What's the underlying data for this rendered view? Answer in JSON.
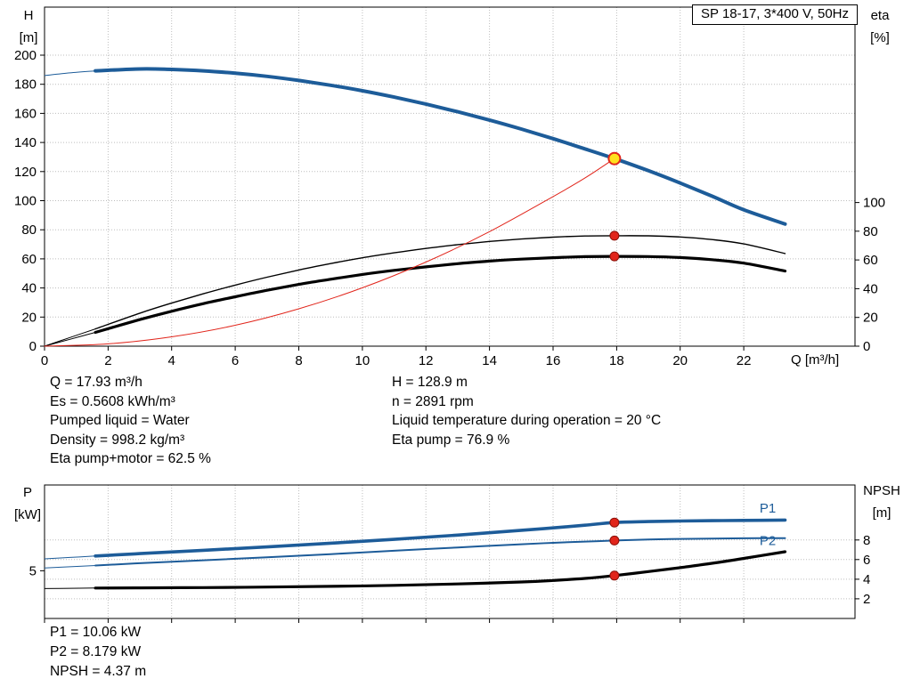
{
  "title_box": "SP 18-17, 3*400 V, 50Hz",
  "axis_labels": {
    "h": "H",
    "h_unit": "[m]",
    "eta": "eta",
    "eta_unit": "[%]",
    "q": "Q [m³/h]",
    "p": "P",
    "p_unit": "[kW]",
    "npsh": "NPSH",
    "npsh_unit": "[m]"
  },
  "readouts_top": {
    "left": [
      "Q = 17.93 m³/h",
      "Es = 0.5608 kWh/m³",
      "Pumped liquid = Water",
      "Density = 998.2 kg/m³",
      "Eta pump+motor = 62.5 %"
    ],
    "right": [
      "H = 128.9 m",
      "n = 2891 rpm",
      "Liquid temperature during operation = 20 °C",
      "Eta pump = 76.9 %"
    ]
  },
  "readouts_bottom": [
    "P1 = 10.06 kW",
    "P2 = 8.179 kW",
    "NPSH = 4.37 m"
  ],
  "colors": {
    "curve_blue": "#1d5c99",
    "red": "#e1251b",
    "marker_yellow": "#ffe11e",
    "grid": "#bdbdbd",
    "axis": "#000000"
  },
  "chart_data": [
    {
      "id": "top",
      "type": "line",
      "title": "SP 18-17, 3*400 V, 50Hz",
      "xlabel": "Q [m³/h]",
      "ylabel_left": "H [m]",
      "ylabel_right": "eta [%]",
      "x_range": [
        0,
        25.5
      ],
      "x_ticks": [
        0,
        2,
        4,
        6,
        8,
        10,
        12,
        14,
        16,
        18,
        20,
        22
      ],
      "y_left_range": [
        0,
        233
      ],
      "y_left_ticks": [
        0,
        20,
        40,
        60,
        80,
        100,
        120,
        140,
        160,
        180,
        200
      ],
      "y_right_range": [
        0,
        236
      ],
      "y_right_ticks": [
        0,
        20,
        40,
        60,
        80,
        100
      ],
      "grid_horizontal": "left",
      "series": [
        {
          "name": "pump-curve-h",
          "label": "H",
          "scale": "left",
          "color": "#1d5c99",
          "width": 4,
          "lead": [
            [
              0,
              186
            ],
            [
              0.8,
              187.8
            ],
            [
              1.6,
              189.2
            ]
          ],
          "points": [
            [
              1.6,
              189.2
            ],
            [
              3,
              190.5
            ],
            [
              4,
              190.2
            ],
            [
              5,
              189.2
            ],
            [
              6,
              187.6
            ],
            [
              7,
              185.4
            ],
            [
              8,
              182.6
            ],
            [
              9,
              179.3
            ],
            [
              10,
              175.5
            ],
            [
              11,
              171.2
            ],
            [
              12,
              166.4
            ],
            [
              13,
              161.1
            ],
            [
              14,
              155.4
            ],
            [
              15,
              149.2
            ],
            [
              16,
              142.6
            ],
            [
              17,
              135.6
            ],
            [
              17.93,
              128.9
            ],
            [
              19,
              120.6
            ],
            [
              20,
              112.1
            ],
            [
              21,
              103.1
            ],
            [
              22,
              93.7
            ],
            [
              23.3,
              83.9
            ]
          ]
        },
        {
          "name": "eta-pump-curve",
          "label": "Eta pump",
          "scale": "right",
          "color": "#000000",
          "width": 1.4,
          "lead": [
            [
              0,
              0
            ],
            [
              0.8,
              6
            ],
            [
              1.6,
              12
            ]
          ],
          "points": [
            [
              1.6,
              12
            ],
            [
              3,
              23
            ],
            [
              4,
              30
            ],
            [
              5,
              36.5
            ],
            [
              6,
              42.5
            ],
            [
              7,
              48
            ],
            [
              8,
              53
            ],
            [
              9,
              57.5
            ],
            [
              10,
              61.5
            ],
            [
              11,
              65
            ],
            [
              12,
              68
            ],
            [
              13,
              70.7
            ],
            [
              14,
              72.9
            ],
            [
              15,
              74.6
            ],
            [
              16,
              75.9
            ],
            [
              17,
              76.7
            ],
            [
              17.93,
              76.9
            ],
            [
              19,
              76.8
            ],
            [
              20,
              76
            ],
            [
              21,
              74.2
            ],
            [
              22,
              71.2
            ],
            [
              23.3,
              64.5
            ]
          ]
        },
        {
          "name": "eta-pump-motor-curve",
          "label": "Eta pump+motor",
          "scale": "right",
          "color": "#000000",
          "width": 3.2,
          "lead": [
            [
              0,
              0
            ],
            [
              0.8,
              4.8
            ],
            [
              1.6,
              9.6
            ]
          ],
          "points": [
            [
              1.6,
              9.6
            ],
            [
              3,
              18.5
            ],
            [
              4,
              24.3
            ],
            [
              5,
              29.6
            ],
            [
              6,
              34.4
            ],
            [
              7,
              38.9
            ],
            [
              8,
              43
            ],
            [
              9,
              46.6
            ],
            [
              10,
              49.9
            ],
            [
              11,
              52.8
            ],
            [
              12,
              55.2
            ],
            [
              13,
              57.4
            ],
            [
              14,
              59.2
            ],
            [
              15,
              60.6
            ],
            [
              16,
              61.6
            ],
            [
              17,
              62.3
            ],
            [
              17.93,
              62.5
            ],
            [
              19,
              62.4
            ],
            [
              20,
              61.7
            ],
            [
              21,
              60.2
            ],
            [
              22,
              57.8
            ],
            [
              23.3,
              52.3
            ]
          ]
        },
        {
          "name": "system-curve",
          "label": "System",
          "scale": "left",
          "color": "#e1251b",
          "width": 1,
          "points": [
            [
              0,
              0
            ],
            [
              2,
              1.6
            ],
            [
              4,
              6.4
            ],
            [
              6,
              14.4
            ],
            [
              8,
              25.7
            ],
            [
              10,
              40.1
            ],
            [
              12,
              57.8
            ],
            [
              14,
              78.7
            ],
            [
              16,
              102.8
            ],
            [
              17,
              115.5
            ],
            [
              17.93,
              128.9
            ]
          ]
        }
      ],
      "markers": [
        {
          "name": "duty-point-marker",
          "x": 17.93,
          "y": 128.9,
          "scale": "left",
          "r": 6.5,
          "fill": "#ffe11e",
          "stroke": "#e1251b",
          "stroke_width": 2
        },
        {
          "name": "eta-pump-point-marker",
          "x": 17.93,
          "y": 76.9,
          "scale": "right",
          "r": 5,
          "fill": "#e1251b",
          "stroke": "#8c1008",
          "stroke_width": 1
        },
        {
          "name": "eta-pump-motor-point-marker",
          "x": 17.93,
          "y": 62.5,
          "scale": "right",
          "r": 5,
          "fill": "#e1251b",
          "stroke": "#8c1008",
          "stroke_width": 1
        }
      ],
      "labels": []
    },
    {
      "id": "bottom",
      "type": "line",
      "title": "",
      "xlabel": "",
      "ylabel_left": "P [kW]",
      "ylabel_right": "NPSH [m]",
      "x_range": [
        0,
        25.5
      ],
      "x_ticks": [
        0,
        2,
        4,
        6,
        8,
        10,
        12,
        14,
        16,
        18,
        20,
        22
      ],
      "y_left_range": [
        0,
        14
      ],
      "y_left_ticks": [
        5
      ],
      "y_right_range": [
        0,
        13.6
      ],
      "y_right_ticks": [
        2,
        4,
        6,
        8
      ],
      "grid_horizontal": "right",
      "series": [
        {
          "name": "p1-curve",
          "label": "P1",
          "scale": "left",
          "color": "#1d5c99",
          "width": 3.6,
          "lead": [
            [
              0,
              6.25
            ],
            [
              0.8,
              6.4
            ],
            [
              1.6,
              6.55
            ]
          ],
          "points": [
            [
              1.6,
              6.55
            ],
            [
              3,
              6.8
            ],
            [
              5,
              7.15
            ],
            [
              7,
              7.5
            ],
            [
              9,
              7.9
            ],
            [
              11,
              8.3
            ],
            [
              13,
              8.75
            ],
            [
              15,
              9.25
            ],
            [
              16,
              9.5
            ],
            [
              17,
              9.78
            ],
            [
              17.93,
              10.06
            ],
            [
              19,
              10.16
            ],
            [
              20,
              10.22
            ],
            [
              21,
              10.26
            ],
            [
              22,
              10.29
            ],
            [
              23.3,
              10.32
            ]
          ]
        },
        {
          "name": "p2-curve",
          "label": "P2",
          "scale": "left",
          "color": "#1d5c99",
          "width": 2,
          "lead": [
            [
              0,
              5.3
            ],
            [
              0.8,
              5.42
            ],
            [
              1.6,
              5.55
            ]
          ],
          "points": [
            [
              1.6,
              5.55
            ],
            [
              3,
              5.8
            ],
            [
              5,
              6.1
            ],
            [
              7,
              6.42
            ],
            [
              9,
              6.75
            ],
            [
              11,
              7.1
            ],
            [
              13,
              7.45
            ],
            [
              15,
              7.78
            ],
            [
              16,
              7.93
            ],
            [
              17,
              8.06
            ],
            [
              17.93,
              8.18
            ],
            [
              19,
              8.28
            ],
            [
              20,
              8.34
            ],
            [
              21,
              8.38
            ],
            [
              22,
              8.41
            ],
            [
              23.3,
              8.43
            ]
          ]
        },
        {
          "name": "npsh-curve",
          "label": "NPSH",
          "scale": "right",
          "color": "#000000",
          "width": 3.2,
          "lead": [
            [
              0,
              3.05
            ],
            [
              0.8,
              3.07
            ],
            [
              1.6,
              3.1
            ]
          ],
          "points": [
            [
              1.6,
              3.1
            ],
            [
              3,
              3.12
            ],
            [
              5,
              3.15
            ],
            [
              7,
              3.2
            ],
            [
              9,
              3.27
            ],
            [
              11,
              3.37
            ],
            [
              13,
              3.52
            ],
            [
              15,
              3.72
            ],
            [
              16,
              3.87
            ],
            [
              17,
              4.08
            ],
            [
              17.93,
              4.37
            ],
            [
              19,
              4.78
            ],
            [
              20,
              5.18
            ],
            [
              21,
              5.62
            ],
            [
              22,
              6.12
            ],
            [
              23.3,
              6.8
            ]
          ]
        }
      ],
      "markers": [
        {
          "name": "p1-point-marker",
          "x": 17.93,
          "y": 10.06,
          "scale": "left",
          "r": 5,
          "fill": "#e1251b",
          "stroke": "#8c1008",
          "stroke_width": 1
        },
        {
          "name": "p2-point-marker",
          "x": 17.93,
          "y": 8.18,
          "scale": "left",
          "r": 5,
          "fill": "#e1251b",
          "stroke": "#8c1008",
          "stroke_width": 1
        },
        {
          "name": "npsh-point-marker",
          "x": 17.93,
          "y": 4.37,
          "scale": "right",
          "r": 5,
          "fill": "#e1251b",
          "stroke": "#8c1008",
          "stroke_width": 1
        }
      ],
      "labels": [
        {
          "name": "p1-curve-label",
          "text": "P1",
          "x": 22.5,
          "y": 11.1,
          "scale": "left",
          "color": "#1d5c99"
        },
        {
          "name": "p2-curve-label",
          "text": "P2",
          "x": 22.5,
          "y": 7.7,
          "scale": "left",
          "color": "#1d5c99"
        }
      ]
    }
  ]
}
